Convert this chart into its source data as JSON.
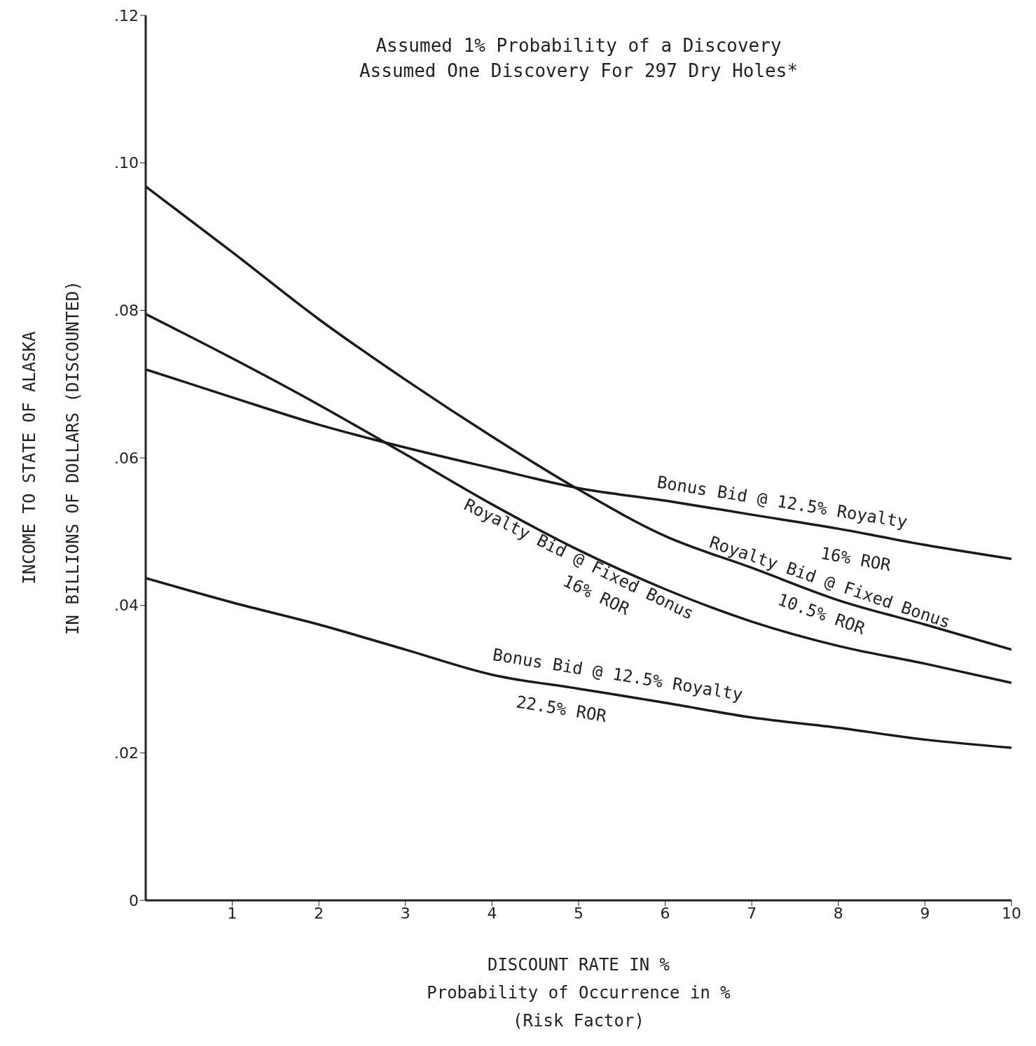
{
  "chart_data": {
    "type": "line",
    "title": "Assumed 1% Probability of a Discovery",
    "subtitle": "Assumed One Discovery For 297 Dry Holes*",
    "xlabel": "DISCOUNT RATE IN %\nProbability of Occurrence in %\n(Risk Factor)",
    "ylabel": "INCOME TO STATE OF ALASKA\nIN BILLIONS OF DOLLARS (DISCOUNTED)",
    "x": [
      0,
      1,
      2,
      3,
      4,
      5,
      6,
      7,
      8,
      9,
      10
    ],
    "series": [
      {
        "name": "Royalty Bid @ Fixed Bonus\n10.5% ROR",
        "color": "#1a1a1a",
        "values": [
          0.0968,
          0.0879,
          0.0788,
          0.0706,
          0.0629,
          0.0557,
          0.0494,
          0.0451,
          0.0407,
          0.0374,
          0.034
        ]
      },
      {
        "name": "Royalty Bid @ Fixed Bonus\n16% ROR",
        "color": "#1a1a1a",
        "values": [
          0.0795,
          0.0735,
          0.0672,
          0.0605,
          0.0537,
          0.0475,
          0.0422,
          0.0378,
          0.0345,
          0.0321,
          0.0295
        ]
      },
      {
        "name": "Bonus Bid @ 12.5% Royalty\n16% ROR",
        "color": "#1a1a1a",
        "values": [
          0.072,
          0.0682,
          0.0645,
          0.0614,
          0.0586,
          0.0559,
          0.0542,
          0.0523,
          0.0504,
          0.0482,
          0.0463
        ]
      },
      {
        "name": "Bonus Bid @ 12.5% Royalty\n22.5% ROR",
        "color": "#1a1a1a",
        "values": [
          0.0437,
          0.0404,
          0.0374,
          0.034,
          0.0306,
          0.0287,
          0.0268,
          0.0248,
          0.0234,
          0.0218,
          0.0207
        ]
      }
    ],
    "xlim": [
      0,
      10
    ],
    "xticks": [
      1,
      2,
      3,
      4,
      5,
      6,
      7,
      8,
      9,
      10
    ],
    "ylim": [
      0,
      0.12
    ],
    "yticks": [
      0,
      {
        "value": 0.02,
        "label": ".02"
      },
      {
        "value": 0.04,
        "label": ".04"
      },
      {
        "value": 0.06,
        "label": ".06"
      },
      {
        "value": 0.08,
        "label": ".08"
      },
      {
        "value": 0.1,
        "label": ".10"
      },
      {
        "value": 0.12,
        "label": ".12"
      }
    ],
    "marker": "none",
    "line_style": "solid"
  }
}
